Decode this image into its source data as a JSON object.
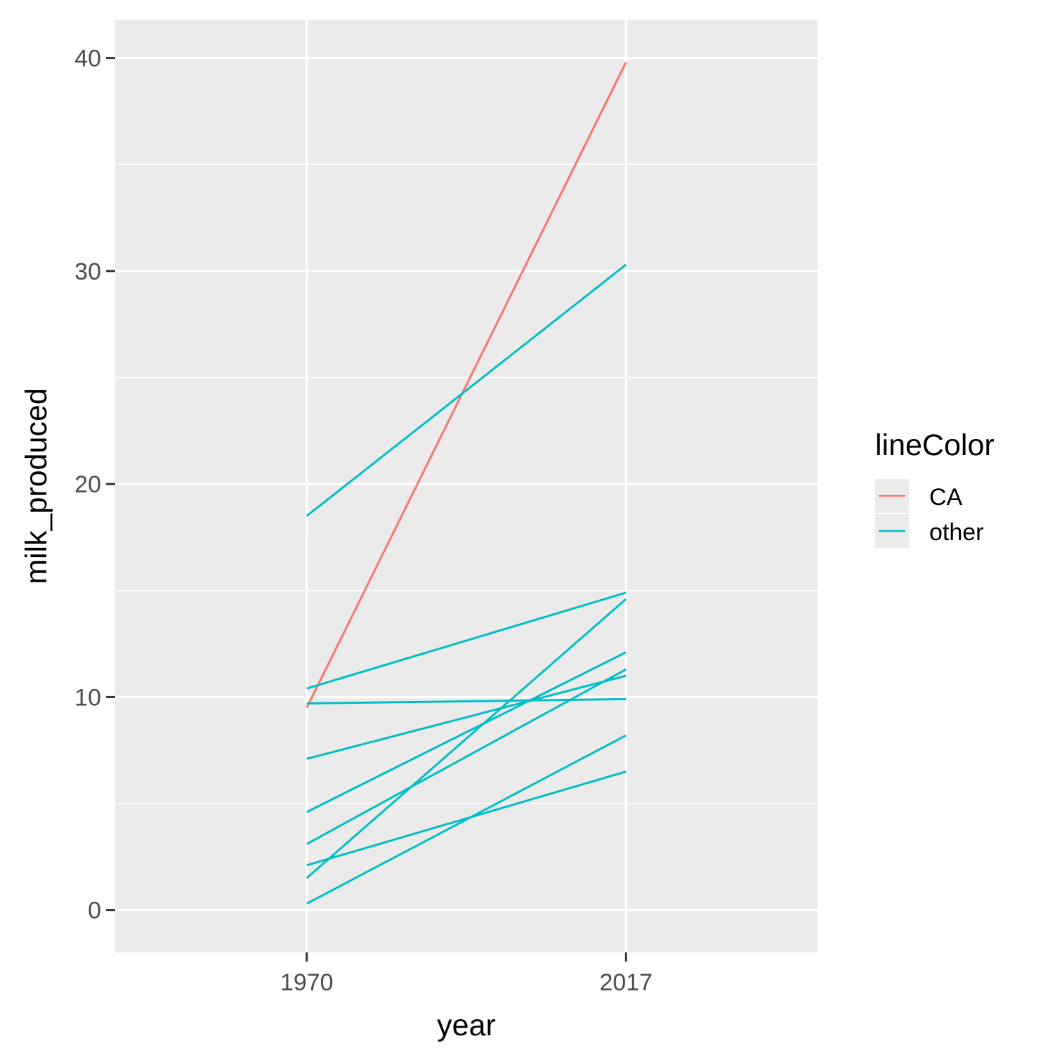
{
  "chart_data": {
    "type": "line",
    "xlabel": "year",
    "ylabel": "milk_produced",
    "x": [
      1970,
      2017
    ],
    "xlim": [
      1941.8,
      2045.2
    ],
    "ylim": [
      -1.99,
      41.8
    ],
    "y_ticks": [
      0,
      10,
      20,
      30,
      40
    ],
    "grid": true,
    "legend": {
      "title": "lineColor",
      "position": "right",
      "entries": [
        {
          "label": "CA",
          "color": "#F8766D"
        },
        {
          "label": "other",
          "color": "#00BFC4"
        }
      ]
    },
    "series": [
      {
        "group": "CA",
        "values": [
          9.5,
          39.8
        ]
      },
      {
        "group": "other",
        "values": [
          18.5,
          30.3
        ]
      },
      {
        "group": "other",
        "values": [
          10.4,
          14.9
        ]
      },
      {
        "group": "other",
        "values": [
          9.7,
          9.9
        ]
      },
      {
        "group": "other",
        "values": [
          7.1,
          11.0
        ]
      },
      {
        "group": "other",
        "values": [
          4.6,
          12.1
        ]
      },
      {
        "group": "other",
        "values": [
          3.1,
          11.3
        ]
      },
      {
        "group": "other",
        "values": [
          1.5,
          14.6
        ]
      },
      {
        "group": "other",
        "values": [
          2.1,
          6.5
        ]
      },
      {
        "group": "other",
        "values": [
          0.3,
          8.2
        ]
      }
    ]
  }
}
